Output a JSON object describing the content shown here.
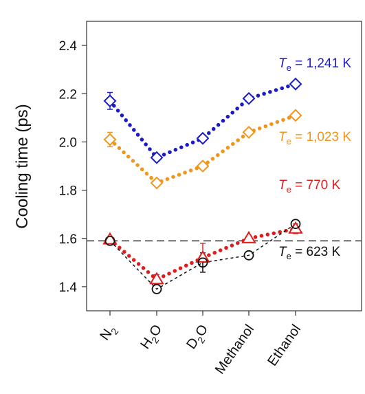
{
  "chart_data": {
    "type": "scatter",
    "ylabel": "Cooling time (ps)",
    "xlabel": "",
    "ylim": [
      1.3,
      2.5
    ],
    "yticks": [
      1.4,
      1.6,
      1.8,
      2.0,
      2.2,
      2.4
    ],
    "grid": false,
    "categories": [
      {
        "base": "N",
        "sub": "2",
        "tail": ""
      },
      {
        "base": "H",
        "sub": "2",
        "tail": "O"
      },
      {
        "base": "D",
        "sub": "2",
        "tail": "O"
      },
      {
        "base": "Methanol",
        "sub": "",
        "tail": ""
      },
      {
        "base": "Ethanol",
        "sub": "",
        "tail": ""
      }
    ],
    "reference_line": {
      "y": 1.59,
      "style": "dashed",
      "color": "#555555"
    },
    "series": [
      {
        "te": "1,241 K",
        "color": "#1a1ac8",
        "marker": "diamond",
        "line": "dotted",
        "values": [
          2.17,
          1.935,
          2.015,
          2.18,
          2.24
        ],
        "errors": [
          0.035,
          0,
          0,
          0,
          0
        ]
      },
      {
        "te": "1,023 K",
        "color": "#f0961e",
        "marker": "diamond",
        "line": "dotted",
        "values": [
          2.01,
          1.83,
          1.9,
          2.04,
          2.11
        ],
        "errors": [
          0.03,
          0,
          0,
          0,
          0
        ]
      },
      {
        "te": "770 K",
        "color": "#dc1e1e",
        "marker": "triangle",
        "line": "dotted",
        "values": [
          1.595,
          1.43,
          1.52,
          1.6,
          1.64
        ],
        "errors": [
          0,
          0.02,
          0.06,
          0,
          0.02
        ]
      },
      {
        "te": "623 K",
        "color": "#111111",
        "marker": "circle",
        "line": "dashed",
        "values": [
          1.59,
          1.39,
          1.5,
          1.53,
          1.66
        ],
        "errors": [
          0,
          0,
          0.04,
          0,
          0
        ]
      }
    ],
    "series_labels": [
      {
        "prefix": "T",
        "sub": "e",
        "value": " = 1,241 K",
        "color": "#1a1ac8"
      },
      {
        "prefix": "T",
        "sub": "e",
        "value": " = 1,023 K",
        "color": "#f0961e"
      },
      {
        "prefix": "T",
        "sub": "e",
        "value": " = 770 K",
        "color": "#dc1e1e"
      },
      {
        "prefix": "T",
        "sub": "e",
        "value": " = 623 K",
        "color": "#111111"
      }
    ]
  }
}
